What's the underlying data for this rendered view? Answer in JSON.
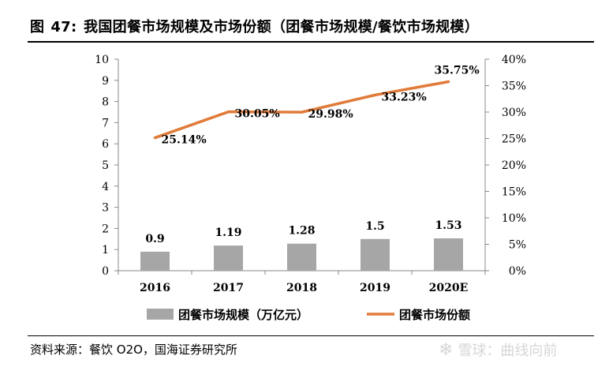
{
  "header": {
    "figure_label": "图",
    "figure_number": "47:",
    "title_text": "我国团餐市场规模及市场份额（团餐市场规模/餐饮市场规模）"
  },
  "footer": {
    "source": "资料来源：餐饮 O2O，国海证券研究所",
    "watermark": "雪球：曲线向前"
  },
  "chart_data": {
    "type": "bar",
    "categories": [
      "2016",
      "2017",
      "2018",
      "2019",
      "2020E"
    ],
    "series": [
      {
        "name": "团餐市场规模（万亿元）",
        "type": "bar",
        "axis": "left",
        "color": "#a6a6a6",
        "values": [
          0.9,
          1.19,
          1.28,
          1.5,
          1.53
        ],
        "labels": [
          "0.9",
          "1.19",
          "1.28",
          "1.5",
          "1.53"
        ]
      },
      {
        "name": "团餐市场份额",
        "type": "line",
        "axis": "right",
        "color": "#e07b39",
        "values": [
          25.14,
          30.05,
          29.98,
          33.23,
          35.75
        ],
        "labels": [
          "25.14%",
          "30.05%",
          "29.98%",
          "33.23%",
          "35.75%"
        ]
      }
    ],
    "y_left": {
      "min": 0,
      "max": 10,
      "ticks": [
        "0",
        "1",
        "2",
        "3",
        "4",
        "5",
        "6",
        "7",
        "8",
        "9",
        "10"
      ]
    },
    "y_right": {
      "min": 0,
      "max": 40,
      "ticks": [
        "0%",
        "5%",
        "10%",
        "15%",
        "20%",
        "25%",
        "30%",
        "35%",
        "40%"
      ]
    },
    "grid": false,
    "legend_position": "bottom"
  }
}
